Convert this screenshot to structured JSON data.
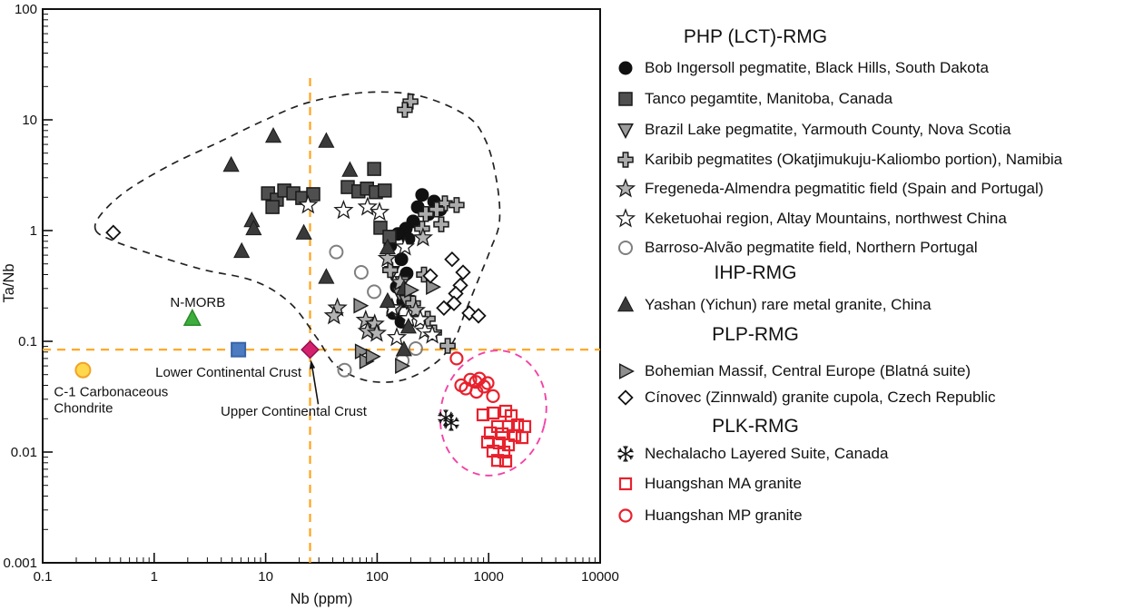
{
  "figure": {
    "background": "#ffffff",
    "accent_orange": "#FFA41C",
    "outline_black": "#222222",
    "outline_pink": "#F443A6"
  },
  "chart_data": {
    "type": "scatter",
    "x_axis": {
      "label": "Nb (ppm)",
      "scale": "log",
      "range": [
        0.1,
        10000
      ],
      "ticks": [
        "0.1",
        "1",
        "10",
        "100",
        "1000",
        "10000"
      ]
    },
    "y_axis": {
      "label": "Ta/Nb",
      "scale": "log",
      "range": [
        0.001,
        100
      ],
      "ticks": [
        "0.001",
        "0.01",
        "0.1",
        "1",
        "10",
        "100"
      ]
    },
    "reference_lines": [
      {
        "id": "upper-crust-horizontal",
        "orientation": "horizontal",
        "value": 0.084,
        "color": "#FFA41C"
      },
      {
        "id": "upper-crust-vertical",
        "orientation": "vertical",
        "value": 25,
        "color": "#FFA41C"
      }
    ],
    "reference_points": [
      {
        "id": "c1_chondrite",
        "label": "C-1 Carbonaceous\nChondrite",
        "x": 0.23,
        "y": 0.055,
        "marker": {
          "shape": "circle",
          "size": 16,
          "fill": "#FFD84D",
          "stroke": "#F2A226",
          "stroke_width": 2
        }
      },
      {
        "id": "n_morb",
        "label": "N-MORB",
        "x": 2.2,
        "y": 0.16,
        "marker": {
          "shape": "triangle-up",
          "size": 16,
          "fill": "#3DAD3D",
          "stroke": "#2B8B2B",
          "stroke_width": 1.5
        }
      },
      {
        "id": "lower_continental_crust",
        "label": "Lower Continental Crust",
        "x": 5.7,
        "y": 0.084,
        "marker": {
          "shape": "square",
          "size": 15,
          "fill": "#4C7BC0",
          "stroke": "#3963A8",
          "stroke_width": 2
        }
      },
      {
        "id": "upper_continental_crust",
        "label": "Upper Continental Crust",
        "x": 25,
        "y": 0.084,
        "marker": {
          "shape": "diamond",
          "size": 15,
          "fill": "#D4216E",
          "stroke": "#93104E",
          "stroke_width": 1.5
        }
      }
    ],
    "field_outlines": [
      {
        "id": "lct_field",
        "style": "dashed",
        "color": "#222222",
        "points": [
          [
            0.3,
            1.0
          ],
          [
            0.33,
            1.38
          ],
          [
            0.57,
            2.3
          ],
          [
            1.46,
            4.0
          ],
          [
            3.7,
            6.2
          ],
          [
            9.5,
            9.8
          ],
          [
            24,
            14.3
          ],
          [
            75,
            17.6
          ],
          [
            230,
            16.6
          ],
          [
            624,
            11.0
          ],
          [
            940,
            6.5
          ],
          [
            1180,
            2.8
          ],
          [
            1250,
            1.2
          ],
          [
            1035,
            0.67
          ],
          [
            826,
            0.38
          ],
          [
            612,
            0.18
          ],
          [
            489,
            0.102
          ],
          [
            336,
            0.064
          ],
          [
            174,
            0.045
          ],
          [
            82,
            0.044
          ],
          [
            43,
            0.06
          ],
          [
            29,
            0.106
          ],
          [
            16.7,
            0.22
          ],
          [
            7.9,
            0.35
          ],
          [
            2.6,
            0.45
          ],
          [
            0.83,
            0.64
          ],
          [
            0.43,
            0.81
          ]
        ]
      },
      {
        "id": "huangshan_field",
        "style": "dashed",
        "color": "#F443A6",
        "ellipse": {
          "cx": 1100,
          "cy": 0.0225,
          "rx_decades": 0.47,
          "ry_decades": 0.57,
          "rotate_deg": 14
        }
      }
    ],
    "series": [
      {
        "id": "bob_ingersoll",
        "label": "Bob Ingersoll pegmatite, Black Hills, South Dakota",
        "group": "PHP (LCT)-RMG",
        "marker": {
          "shape": "circle",
          "size": 14,
          "fill": "#111111",
          "stroke": "#111111",
          "stroke_width": 1
        },
        "points": [
          [
            253,
            2.1
          ],
          [
            324,
            1.83
          ],
          [
            231,
            1.63
          ],
          [
            289,
            1.41
          ],
          [
            369,
            1.55
          ],
          [
            210,
            1.21
          ],
          [
            181,
            1.04
          ],
          [
            153,
            0.93
          ],
          [
            191,
            0.84
          ],
          [
            131,
            0.73
          ],
          [
            165,
            0.55
          ],
          [
            184,
            0.41
          ],
          [
            150,
            0.31
          ],
          [
            171,
            0.23
          ],
          [
            139,
            0.18
          ],
          [
            165,
            0.15
          ]
        ]
      },
      {
        "id": "tanco",
        "label": "Tanco pegamtite, Manitoba, Canada",
        "group": "PHP (LCT)-RMG",
        "marker": {
          "shape": "square",
          "size": 14,
          "fill": "#4F4F4F",
          "stroke": "#1a1a1a",
          "stroke_width": 1.5
        },
        "points": [
          [
            10.5,
            2.17
          ],
          [
            12.6,
            1.9
          ],
          [
            14.7,
            2.3
          ],
          [
            17.7,
            2.17
          ],
          [
            21.3,
            1.97
          ],
          [
            26.7,
            2.13
          ],
          [
            54.5,
            2.47
          ],
          [
            68,
            2.26
          ],
          [
            81,
            2.39
          ],
          [
            97.5,
            2.22
          ],
          [
            117,
            2.3
          ],
          [
            94,
            3.6
          ],
          [
            107,
            1.06
          ],
          [
            129,
            0.88
          ],
          [
            11.5,
            1.63
          ]
        ]
      },
      {
        "id": "brazil_lake",
        "label": "Brazil Lake pegmatite, Yarmouth County, Nova Scotia",
        "group": "PHP (LCT)-RMG",
        "marker": {
          "shape": "triangle-down",
          "size": 14,
          "fill": "#9C9C9C",
          "stroke": "#1a1a1a",
          "stroke_width": 1.5
        },
        "points": [
          [
            136,
            0.42
          ],
          [
            159,
            0.27
          ],
          [
            184,
            0.23
          ],
          [
            147,
            0.19
          ],
          [
            168,
            0.34
          ]
        ]
      },
      {
        "id": "karibib",
        "label": "Karibib pegmatites (Okatjimukuju-Kaliombo portion), Namibia",
        "group": "PHP (LCT)-RMG",
        "marker": {
          "shape": "plus",
          "size": 16,
          "fill": "#ABABAB",
          "stroke": "#1a1a1a",
          "stroke_width": 1.5
        },
        "points": [
          [
            199,
            14.6
          ],
          [
            177,
            12.3
          ],
          [
            405,
            1.76
          ],
          [
            516,
            1.7
          ],
          [
            342,
            1.55
          ],
          [
            273,
            1.41
          ],
          [
            376,
            1.14
          ],
          [
            253,
            1.04
          ],
          [
            263,
            0.4
          ],
          [
            210,
            0.22
          ],
          [
            284,
            0.16
          ],
          [
            131,
            0.44
          ],
          [
            429,
            0.091
          ],
          [
            324,
            0.12
          ]
        ]
      },
      {
        "id": "fregeneda",
        "label": "Fregeneda-Almendra pegmatitic field (Spain and Portugal)",
        "group": "PHP (LCT)-RMG",
        "marker": {
          "shape": "star",
          "size": 16,
          "fill": "#B3B3B3",
          "stroke": "#1a1a1a",
          "stroke_width": 1.3
        },
        "points": [
          [
            44,
            0.2
          ],
          [
            41,
            0.17
          ],
          [
            79,
            0.155
          ],
          [
            95,
            0.143
          ],
          [
            82,
            0.123
          ],
          [
            99,
            0.118
          ],
          [
            258,
            0.86
          ],
          [
            124,
            0.56
          ],
          [
            161,
            0.34
          ],
          [
            222,
            0.19
          ]
        ]
      },
      {
        "id": "keketuohai",
        "label": "Keketuohai region, Altay Mountains, northwest China",
        "group": "PHP (LCT)-RMG",
        "marker": {
          "shape": "star",
          "size": 16,
          "fill": "#ffffff",
          "stroke": "#1a1a1a",
          "stroke_width": 1.3
        },
        "points": [
          [
            24,
            1.7
          ],
          [
            50,
            1.52
          ],
          [
            82,
            1.63
          ],
          [
            105,
            1.46
          ],
          [
            177,
            0.71
          ],
          [
            136,
            0.2
          ],
          [
            191,
            0.16
          ],
          [
            244,
            0.157
          ],
          [
            268,
            0.123
          ],
          [
            312,
            0.114
          ],
          [
            150,
            0.108
          ]
        ]
      },
      {
        "id": "barroso",
        "label": "Barroso-Alvão pegmatite field, Northern Portugal",
        "group": "PHP (LCT)-RMG",
        "marker": {
          "shape": "circle",
          "size": 14,
          "fill": "none",
          "stroke": "#7F7F7F",
          "stroke_width": 2
        },
        "points": [
          [
            43,
            0.64
          ],
          [
            72,
            0.42
          ],
          [
            94,
            0.28
          ],
          [
            51,
            0.055
          ],
          [
            168,
            0.067
          ],
          [
            222,
            0.086
          ]
        ]
      },
      {
        "id": "yashan",
        "label": "Yashan (Yichun) rare metal granite, China",
        "group": "IHP-RMG",
        "marker": {
          "shape": "triangle-up",
          "size": 15,
          "fill": "#3A3A3A",
          "stroke": "#1a1a1a",
          "stroke_width": 1
        },
        "points": [
          [
            11.7,
            7.1
          ],
          [
            35,
            6.4
          ],
          [
            57,
            3.5
          ],
          [
            4.9,
            3.9
          ],
          [
            7.5,
            1.23
          ],
          [
            7.8,
            1.04
          ],
          [
            6.1,
            0.65
          ],
          [
            22,
            0.95
          ],
          [
            35,
            0.38
          ],
          [
            124,
            0.7
          ],
          [
            174,
            0.3
          ],
          [
            124,
            0.23
          ],
          [
            191,
            0.135
          ],
          [
            174,
            0.084
          ]
        ]
      },
      {
        "id": "bohemian",
        "label": "Bohemian Massif, Central Europe (Blatná suite)",
        "group": "PLP-RMG",
        "marker": {
          "shape": "triangle-right",
          "size": 14,
          "fill": "#8F8F8F",
          "stroke": "#1a1a1a",
          "stroke_width": 1.4
        },
        "points": [
          [
            70,
            0.21
          ],
          [
            199,
            0.29
          ],
          [
            312,
            0.31
          ],
          [
            72,
            0.081
          ],
          [
            79,
            0.066
          ],
          [
            165,
            0.06
          ],
          [
            90,
            0.073
          ]
        ]
      },
      {
        "id": "cinovec",
        "label": "Cínovec (Zinnwald) granite cupola, Czech Republic",
        "group": "PLP-RMG",
        "marker": {
          "shape": "diamond",
          "size": 12,
          "fill": "#ffffff",
          "stroke": "#111111",
          "stroke_width": 1.8
        },
        "points": [
          [
            0.43,
            0.96
          ],
          [
            470,
            0.55
          ],
          [
            300,
            0.39
          ],
          [
            557,
            0.32
          ],
          [
            507,
            0.27
          ],
          [
            489,
            0.22
          ],
          [
            397,
            0.2
          ],
          [
            671,
            0.18
          ],
          [
            811,
            0.17
          ],
          [
            589,
            0.42
          ]
        ]
      },
      {
        "id": "nechalacho",
        "label": "Nechalacho Layered Suite, Canada",
        "group": "PLK-RMG",
        "marker": {
          "shape": "snowflake",
          "size": 17,
          "fill": "none",
          "stroke": "#111111",
          "stroke_width": 1.5
        },
        "points": [
          [
            413,
            0.0205
          ],
          [
            461,
            0.0183
          ]
        ]
      },
      {
        "id": "huangshan_ma",
        "label": "Huangshan MA granite",
        "group": "PLK-RMG",
        "marker": {
          "shape": "square",
          "size": 12,
          "fill": "none",
          "stroke": "#E8212D",
          "stroke_width": 2.2
        },
        "points": [
          [
            891,
            0.0217
          ],
          [
            1094,
            0.0225
          ],
          [
            1423,
            0.0234
          ],
          [
            1593,
            0.0213
          ],
          [
            1202,
            0.017
          ],
          [
            1504,
            0.017
          ],
          [
            1816,
            0.0176
          ],
          [
            2109,
            0.017
          ],
          [
            1035,
            0.0149
          ],
          [
            1321,
            0.0146
          ],
          [
            1718,
            0.0141
          ],
          [
            1995,
            0.0135
          ],
          [
            977,
            0.0123
          ],
          [
            1247,
            0.0121
          ],
          [
            1504,
            0.0116
          ],
          [
            1094,
            0.0102
          ],
          [
            1371,
            0.01
          ],
          [
            1202,
            0.0084
          ],
          [
            1423,
            0.0083
          ]
        ]
      },
      {
        "id": "huangshan_mp",
        "label": "Huangshan MP granite",
        "group": "PLK-RMG",
        "marker": {
          "shape": "circle",
          "size": 13,
          "fill": "none",
          "stroke": "#E8212D",
          "stroke_width": 2.2
        },
        "points": [
          [
            516,
            0.07
          ],
          [
            568,
            0.04
          ],
          [
            624,
            0.0375
          ],
          [
            685,
            0.045
          ],
          [
            766,
            0.043
          ],
          [
            826,
            0.046
          ],
          [
            908,
            0.039
          ],
          [
            977,
            0.042
          ],
          [
            1094,
            0.032
          ],
          [
            778,
            0.035
          ]
        ]
      }
    ]
  },
  "legend": {
    "sections": [
      {
        "header": "PHP (LCT)-RMG",
        "series_ids": [
          "bob_ingersoll",
          "tanco",
          "brazil_lake",
          "karibib",
          "fregeneda",
          "keketuohai",
          "barroso"
        ]
      },
      {
        "header": "IHP-RMG",
        "series_ids": [
          "yashan"
        ]
      },
      {
        "header": "PLP-RMG",
        "series_ids": [
          "bohemian",
          "cinovec"
        ]
      },
      {
        "header": "PLK-RMG",
        "series_ids": [
          "nechalacho",
          "huangshan_ma",
          "huangshan_mp"
        ]
      }
    ]
  }
}
